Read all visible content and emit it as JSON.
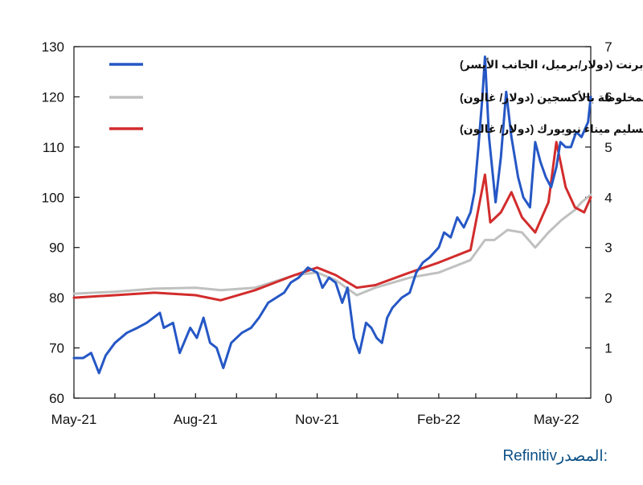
{
  "chart_data": {
    "type": "line",
    "left_axis": {
      "ticks": [
        60,
        70,
        80,
        90,
        100,
        110,
        120,
        130
      ],
      "range": [
        60,
        130
      ]
    },
    "right_axis": {
      "ticks": [
        0,
        1,
        2,
        3,
        4,
        5,
        6,
        7
      ],
      "range": [
        0,
        7
      ]
    },
    "x_axis": {
      "ticks": [
        "May-21",
        "Aug-21",
        "Nov-21",
        "Feb-22",
        "May-22"
      ],
      "tick_dates": [
        "2021-05-01",
        "2021-08-01",
        "2021-11-01",
        "2022-02-01",
        "2022-05-01"
      ],
      "range": [
        "2021-05-01",
        "2022-05-27"
      ]
    },
    "grid": false,
    "legend_position": "top-right",
    "series": [
      {
        "name": "خام برنت (دولار/برميل، الجانب الأيسر)",
        "axis": "left",
        "color": "#2557c5",
        "points": [
          [
            "2021-05-01",
            68
          ],
          [
            "2021-05-08",
            68
          ],
          [
            "2021-05-14",
            69
          ],
          [
            "2021-05-17",
            67
          ],
          [
            "2021-05-20",
            65
          ],
          [
            "2021-05-25",
            68.5
          ],
          [
            "2021-06-01",
            71
          ],
          [
            "2021-06-10",
            73
          ],
          [
            "2021-06-18",
            74
          ],
          [
            "2021-06-25",
            75
          ],
          [
            "2021-07-05",
            77
          ],
          [
            "2021-07-08",
            74
          ],
          [
            "2021-07-15",
            75
          ],
          [
            "2021-07-20",
            69
          ],
          [
            "2021-07-28",
            74
          ],
          [
            "2021-08-02",
            72
          ],
          [
            "2021-08-07",
            76
          ],
          [
            "2021-08-12",
            71
          ],
          [
            "2021-08-17",
            70
          ],
          [
            "2021-08-22",
            66
          ],
          [
            "2021-08-28",
            71
          ],
          [
            "2021-09-05",
            73
          ],
          [
            "2021-09-12",
            74
          ],
          [
            "2021-09-18",
            76
          ],
          [
            "2021-09-25",
            79
          ],
          [
            "2021-10-01",
            80
          ],
          [
            "2021-10-07",
            81
          ],
          [
            "2021-10-12",
            83
          ],
          [
            "2021-10-18",
            84
          ],
          [
            "2021-10-25",
            86
          ],
          [
            "2021-11-01",
            85
          ],
          [
            "2021-11-05",
            82
          ],
          [
            "2021-11-10",
            84
          ],
          [
            "2021-11-15",
            83
          ],
          [
            "2021-11-20",
            79
          ],
          [
            "2021-11-24",
            82
          ],
          [
            "2021-11-29",
            72
          ],
          [
            "2021-12-03",
            69
          ],
          [
            "2021-12-08",
            75
          ],
          [
            "2021-12-12",
            74
          ],
          [
            "2021-12-16",
            72
          ],
          [
            "2021-12-20",
            71
          ],
          [
            "2021-12-24",
            76
          ],
          [
            "2021-12-28",
            78
          ],
          [
            "2022-01-04",
            80
          ],
          [
            "2022-01-10",
            81
          ],
          [
            "2022-01-15",
            85
          ],
          [
            "2022-01-20",
            87
          ],
          [
            "2022-01-25",
            88
          ],
          [
            "2022-02-01",
            90
          ],
          [
            "2022-02-05",
            93
          ],
          [
            "2022-02-10",
            92
          ],
          [
            "2022-02-15",
            96
          ],
          [
            "2022-02-20",
            94
          ],
          [
            "2022-02-25",
            97
          ],
          [
            "2022-02-28",
            101
          ],
          [
            "2022-03-03",
            110
          ],
          [
            "2022-03-06",
            120
          ],
          [
            "2022-03-08",
            128
          ],
          [
            "2022-03-11",
            112
          ],
          [
            "2022-03-16",
            99
          ],
          [
            "2022-03-20",
            108
          ],
          [
            "2022-03-24",
            121
          ],
          [
            "2022-03-28",
            112
          ],
          [
            "2022-04-02",
            104
          ],
          [
            "2022-04-06",
            100
          ],
          [
            "2022-04-11",
            98
          ],
          [
            "2022-04-15",
            111
          ],
          [
            "2022-04-19",
            107
          ],
          [
            "2022-04-23",
            104
          ],
          [
            "2022-04-27",
            102
          ],
          [
            "2022-05-01",
            106
          ],
          [
            "2022-05-04",
            111
          ],
          [
            "2022-05-08",
            110
          ],
          [
            "2022-05-12",
            110
          ],
          [
            "2022-05-16",
            113
          ],
          [
            "2022-05-20",
            112
          ],
          [
            "2022-05-25",
            115
          ],
          [
            "2022-05-27",
            120
          ]
        ]
      },
      {
        "name": "توليفة البنزين المحسنة المخلوطة بالأكسجين (دولار/ غالون)",
        "axis": "right",
        "color": "#bfc1bf",
        "points": [
          [
            "2021-05-01",
            2.08
          ],
          [
            "2021-06-01",
            2.12
          ],
          [
            "2021-07-01",
            2.18
          ],
          [
            "2021-08-01",
            2.2
          ],
          [
            "2021-08-20",
            2.15
          ],
          [
            "2021-09-15",
            2.2
          ],
          [
            "2021-10-15",
            2.45
          ],
          [
            "2021-11-01",
            2.5
          ],
          [
            "2021-11-15",
            2.35
          ],
          [
            "2021-12-01",
            2.05
          ],
          [
            "2021-12-15",
            2.2
          ],
          [
            "2022-01-10",
            2.4
          ],
          [
            "2022-02-01",
            2.5
          ],
          [
            "2022-02-25",
            2.75
          ],
          [
            "2022-03-08",
            3.15
          ],
          [
            "2022-03-15",
            3.15
          ],
          [
            "2022-03-25",
            3.35
          ],
          [
            "2022-04-05",
            3.3
          ],
          [
            "2022-04-15",
            3.0
          ],
          [
            "2022-04-25",
            3.3
          ],
          [
            "2022-05-05",
            3.55
          ],
          [
            "2022-05-15",
            3.75
          ],
          [
            "2022-05-20",
            3.9
          ],
          [
            "2022-05-27",
            4.05
          ]
        ]
      },
      {
        "name": "زيت الوقود سعر تسليم ميناء نيويورك (دولار/ غالون)",
        "axis": "right",
        "color": "#d22c2c",
        "points": [
          [
            "2021-05-01",
            2.0
          ],
          [
            "2021-06-01",
            2.05
          ],
          [
            "2021-07-01",
            2.1
          ],
          [
            "2021-08-01",
            2.05
          ],
          [
            "2021-08-20",
            1.95
          ],
          [
            "2021-09-15",
            2.15
          ],
          [
            "2021-10-15",
            2.45
          ],
          [
            "2021-11-01",
            2.6
          ],
          [
            "2021-11-15",
            2.45
          ],
          [
            "2021-12-01",
            2.2
          ],
          [
            "2021-12-15",
            2.25
          ],
          [
            "2022-01-10",
            2.5
          ],
          [
            "2022-02-01",
            2.7
          ],
          [
            "2022-02-25",
            2.95
          ],
          [
            "2022-03-08",
            4.45
          ],
          [
            "2022-03-12",
            3.5
          ],
          [
            "2022-03-20",
            3.7
          ],
          [
            "2022-03-28",
            4.1
          ],
          [
            "2022-04-05",
            3.6
          ],
          [
            "2022-04-15",
            3.3
          ],
          [
            "2022-04-25",
            3.9
          ],
          [
            "2022-05-01",
            5.1
          ],
          [
            "2022-05-08",
            4.2
          ],
          [
            "2022-05-15",
            3.8
          ],
          [
            "2022-05-22",
            3.7
          ],
          [
            "2022-05-27",
            4.0
          ]
        ]
      }
    ]
  },
  "source": {
    "label": "المصدر:",
    "value": "Refinitiv"
  }
}
